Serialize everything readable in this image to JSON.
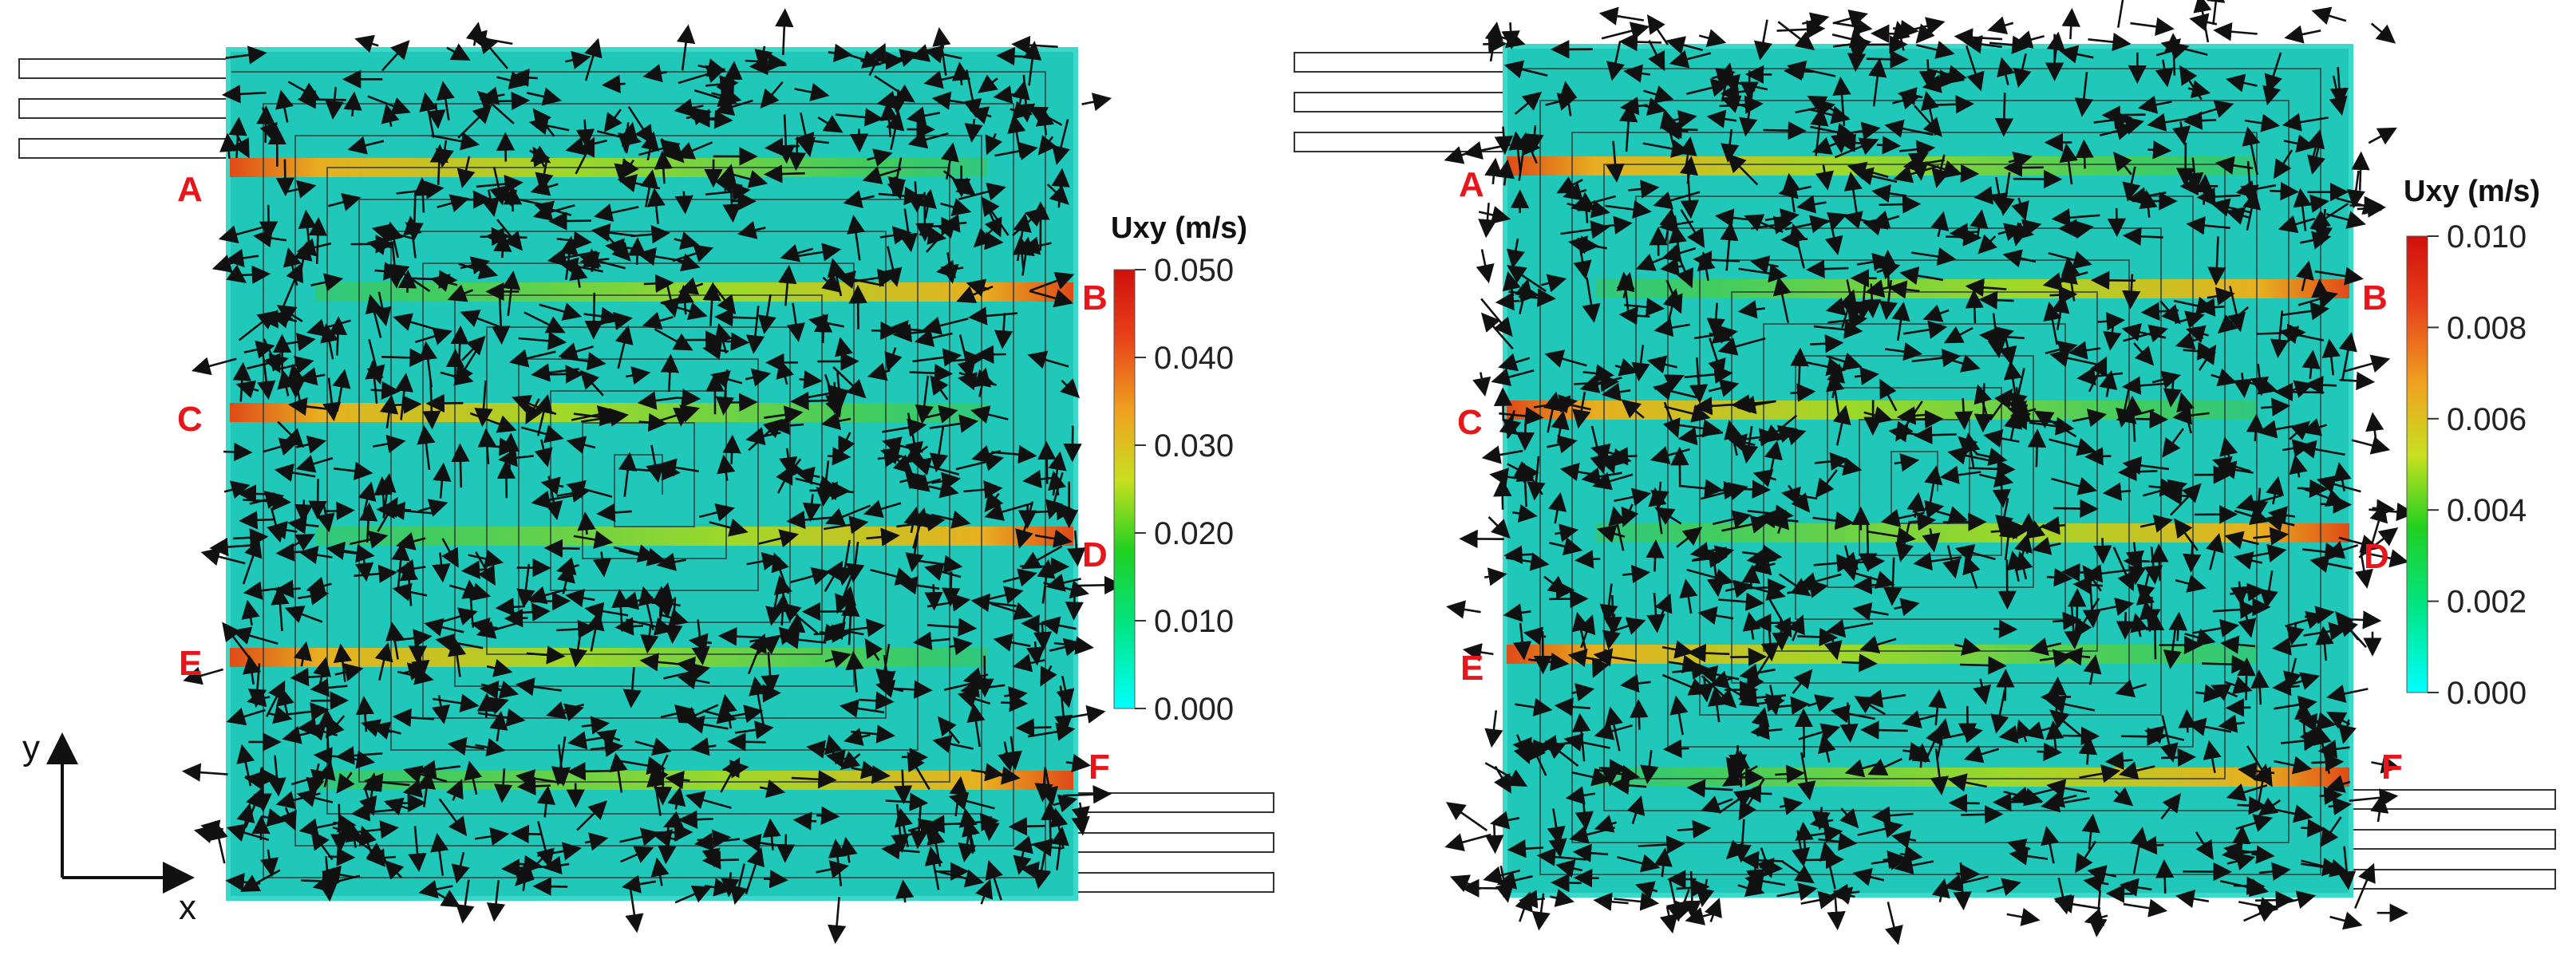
{
  "colors": {
    "field_base": "#1fc8b8",
    "label_red": "#e8161b",
    "arrow": "#111111",
    "outline": "#333333"
  },
  "axes": {
    "x_label": "x",
    "y_label": "y"
  },
  "panels": [
    {
      "id": "left",
      "point_labels": [
        "A",
        "B",
        "C",
        "D",
        "E",
        "F"
      ],
      "colorbar": {
        "title": "Uxy (m/s)",
        "ticks": [
          "0.050",
          "0.040",
          "0.030",
          "0.020",
          "0.010",
          "0.000"
        ],
        "min": 0.0,
        "max": 0.05,
        "colormap": [
          "#00ffff",
          "#00e68a",
          "#20d020",
          "#c8e020",
          "#f0a020",
          "#e8401a",
          "#d0100c"
        ]
      }
    },
    {
      "id": "right",
      "point_labels": [
        "A",
        "B",
        "C",
        "D",
        "E",
        "F"
      ],
      "colorbar": {
        "title": "Uxy (m/s)",
        "ticks": [
          "0.010",
          "0.008",
          "0.006",
          "0.004",
          "0.002",
          "0.000"
        ],
        "min": 0.0,
        "max": 0.01,
        "colormap": [
          "#00ffff",
          "#00e68a",
          "#20d020",
          "#c8e020",
          "#f0a020",
          "#e8401a",
          "#d0100c"
        ]
      }
    }
  ]
}
